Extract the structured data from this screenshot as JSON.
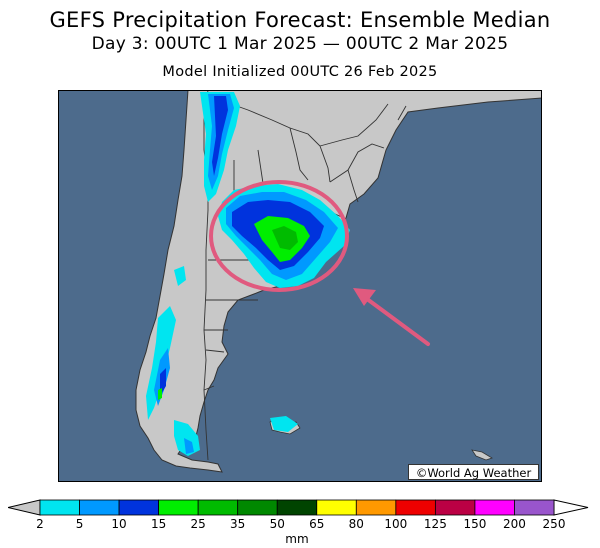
{
  "header": {
    "title": "GEFS Precipitation Forecast: Ensemble Median",
    "period": "Day 3: 00UTC 1 Mar 2025 — 00UTC 2 Mar 2025",
    "init": "Model Initialized 00UTC 26 Feb 2025"
  },
  "credit": "©World Ag Weather",
  "colors": {
    "ocean": "#4d6b8c",
    "land": "#c8c8c8",
    "border": "#333333",
    "highlight": "#e05a7f"
  },
  "legend": {
    "unit": "mm",
    "ticks": [
      "2",
      "5",
      "10",
      "15",
      "25",
      "35",
      "50",
      "65",
      "80",
      "100",
      "125",
      "150",
      "200",
      "250"
    ],
    "colors": [
      "#00e5f0",
      "#0099ff",
      "#0033dd",
      "#00ee00",
      "#00bb00",
      "#008800",
      "#004400",
      "#ffff00",
      "#ff9900",
      "#ee0000",
      "#bb0044",
      "#ff00ff",
      "#9955cc"
    ],
    "under_color": "#c8c8c8",
    "over_color": "#ffffff"
  },
  "annotation": {
    "shape": "ellipse",
    "pointer": "arrow",
    "color": "#e05a7f"
  }
}
